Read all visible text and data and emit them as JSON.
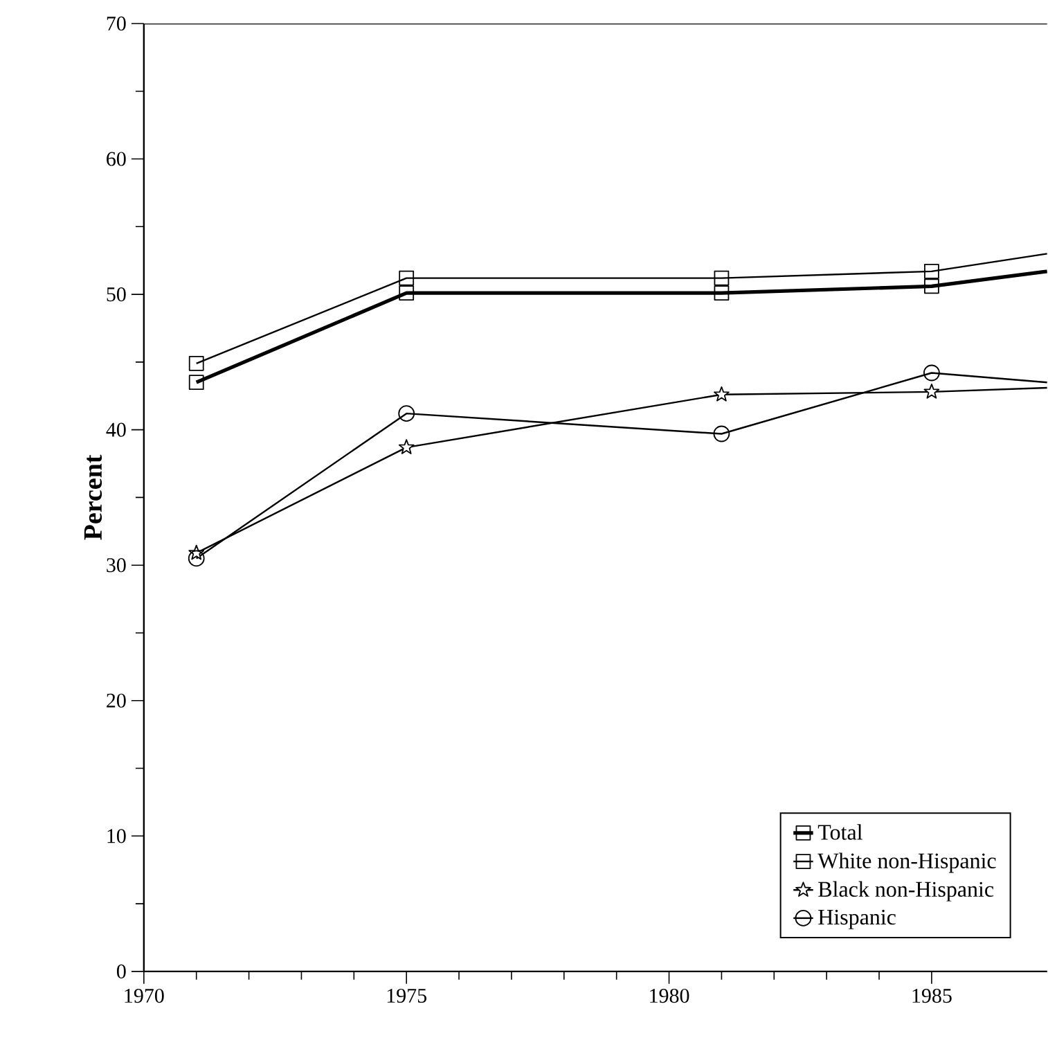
{
  "chart_data": {
    "type": "line",
    "ylabel": "Percent",
    "xlim": [
      1970,
      1987.2
    ],
    "xticks": [
      1970,
      1975,
      1980,
      1985
    ],
    "ylim": [
      0,
      70
    ],
    "yticks": [
      0,
      10,
      20,
      30,
      40,
      50,
      60,
      70
    ],
    "legend": "bottom right",
    "grid": false,
    "series": [
      {
        "name": "Total",
        "color": "#000000",
        "marker": "square",
        "x": [
          1971,
          1975,
          1981,
          1985,
          1987.2
        ],
        "values": [
          43.5,
          50.1,
          50.1,
          50.6,
          51.7
        ]
      },
      {
        "name": "White non-Hispanic",
        "color": "#000000",
        "marker": "square",
        "x": [
          1971,
          1975,
          1981,
          1985,
          1987.2
        ],
        "values": [
          44.9,
          51.2,
          51.2,
          51.7,
          53.0
        ]
      },
      {
        "name": "Black non-Hispanic",
        "color": "#000000",
        "marker": "star",
        "x": [
          1971,
          1975,
          1981,
          1985,
          1987.2
        ],
        "values": [
          30.9,
          38.7,
          42.6,
          42.8,
          43.1
        ]
      },
      {
        "name": "Hispanic",
        "color": "#000000",
        "marker": "circle",
        "x": [
          1971,
          1975,
          1981,
          1985,
          1987.2
        ],
        "values": [
          30.5,
          41.2,
          39.7,
          44.2,
          43.5
        ]
      }
    ]
  }
}
